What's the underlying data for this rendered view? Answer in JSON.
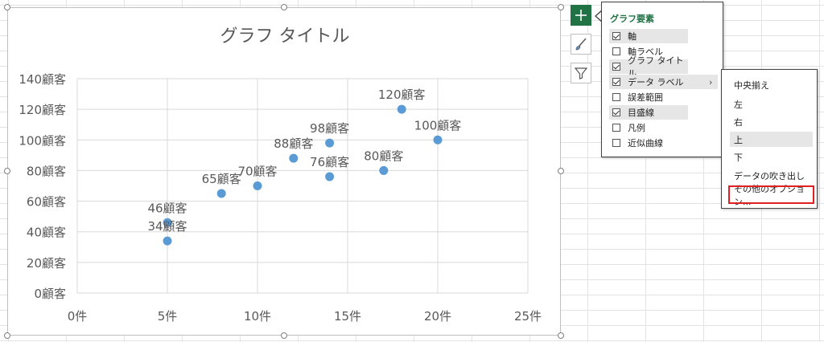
{
  "chart": {
    "title": "グラフ タイトル",
    "x_ticks": [
      "0件",
      "5件",
      "10件",
      "15件",
      "20件",
      "25件"
    ],
    "y_ticks": [
      "0顧客",
      "20顧客",
      "40顧客",
      "60顧客",
      "80顧客",
      "100顧客",
      "120顧客",
      "140顧客"
    ],
    "point_color": "#5b9bd5"
  },
  "chart_data": {
    "type": "scatter",
    "title": "グラフ タイトル",
    "xlabel": "",
    "ylabel": "",
    "xlim": [
      0,
      25
    ],
    "ylim": [
      0,
      140
    ],
    "x_unit": "件",
    "y_unit": "顧客",
    "grid": true,
    "points": [
      {
        "x": 5,
        "y": 34,
        "label": "34顧客"
      },
      {
        "x": 5,
        "y": 46,
        "label": "46顧客"
      },
      {
        "x": 8,
        "y": 65,
        "label": "65顧客"
      },
      {
        "x": 10,
        "y": 70,
        "label": "70顧客"
      },
      {
        "x": 12,
        "y": 88,
        "label": "88顧客"
      },
      {
        "x": 14,
        "y": 76,
        "label": "76顧客"
      },
      {
        "x": 14,
        "y": 98,
        "label": "98顧客"
      },
      {
        "x": 17,
        "y": 80,
        "label": "80顧客"
      },
      {
        "x": 18,
        "y": 120,
        "label": "120顧客"
      },
      {
        "x": 20,
        "y": 100,
        "label": "100顧客"
      }
    ]
  },
  "side_buttons": {
    "elements": "chart-elements",
    "styles": "chart-styles",
    "filters": "chart-filters"
  },
  "elements_panel": {
    "title": "グラフ要素",
    "items": [
      {
        "label": "軸",
        "checked": true
      },
      {
        "label": "軸ラベル",
        "checked": false
      },
      {
        "label": "グラフ タイトル",
        "checked": true
      },
      {
        "label": "データ ラベル",
        "checked": true
      },
      {
        "label": "誤差範囲",
        "checked": false
      },
      {
        "label": "目盛線",
        "checked": true
      },
      {
        "label": "凡例",
        "checked": false
      },
      {
        "label": "近似曲線",
        "checked": false
      }
    ],
    "chevron": "›"
  },
  "label_submenu": {
    "items": [
      "中央揃え",
      "左",
      "右",
      "上",
      "下",
      "データの吹き出し",
      "その他のオプション..."
    ]
  }
}
